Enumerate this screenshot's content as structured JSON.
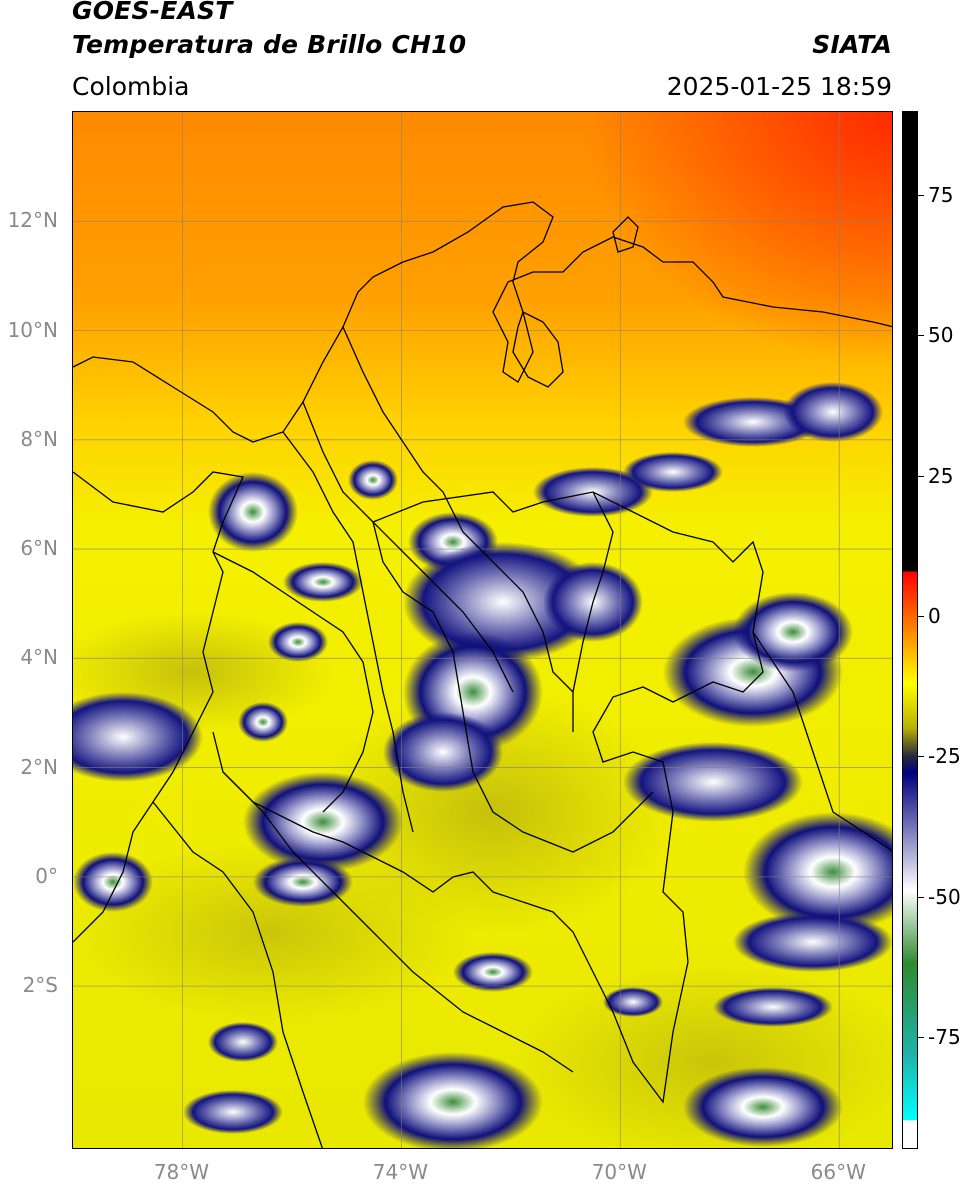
{
  "header": {
    "satellite": "GOES-EAST",
    "product": "Temperatura de Brillo CH10",
    "brand": "SIATA",
    "region": "Colombia",
    "datetime": "2025-01-25 18:59"
  },
  "map": {
    "lon_range": [
      -80,
      -65
    ],
    "lat_range": [
      -5,
      14
    ],
    "lat_ticks": [
      {
        "value": 12,
        "label": "12°N"
      },
      {
        "value": 10,
        "label": "10°N"
      },
      {
        "value": 8,
        "label": "8°N"
      },
      {
        "value": 6,
        "label": "6°N"
      },
      {
        "value": 4,
        "label": "4°N"
      },
      {
        "value": 2,
        "label": "2°N"
      },
      {
        "value": 0,
        "label": "0°"
      },
      {
        "value": -2,
        "label": "2°S"
      }
    ],
    "lon_ticks": [
      {
        "value": -78,
        "label": "78°W"
      },
      {
        "value": -74,
        "label": "74°W"
      },
      {
        "value": -70,
        "label": "70°W"
      },
      {
        "value": -66,
        "label": "66°W"
      }
    ],
    "grid": true
  },
  "colorbar": {
    "range": [
      -95,
      90
    ],
    "ticks": [
      {
        "value": 75,
        "label": "75"
      },
      {
        "value": 50,
        "label": "50"
      },
      {
        "value": 25,
        "label": "25"
      },
      {
        "value": 0,
        "label": "0"
      },
      {
        "value": -25,
        "label": "-25"
      },
      {
        "value": -50,
        "label": "-50"
      },
      {
        "value": -75,
        "label": "-75"
      }
    ],
    "stops": [
      {
        "value": 90,
        "color": "#000000"
      },
      {
        "value": 8,
        "color": "#000000"
      },
      {
        "value": 7.9,
        "color": "#ff0000"
      },
      {
        "value": -3,
        "color": "#ff8c00"
      },
      {
        "value": -12,
        "color": "#ffff00"
      },
      {
        "value": -20,
        "color": "#b9b000"
      },
      {
        "value": -25,
        "color": "#2a2a40"
      },
      {
        "value": -28,
        "color": "#000080"
      },
      {
        "value": -40,
        "color": "#9090c8"
      },
      {
        "value": -49,
        "color": "#ffffff"
      },
      {
        "value": -62,
        "color": "#2e8b2e"
      },
      {
        "value": -78,
        "color": "#20b2aa"
      },
      {
        "value": -90,
        "color": "#00ffff"
      },
      {
        "value": -90.1,
        "color": "#ffffff"
      },
      {
        "value": -95,
        "color": "#ffffff"
      }
    ]
  }
}
